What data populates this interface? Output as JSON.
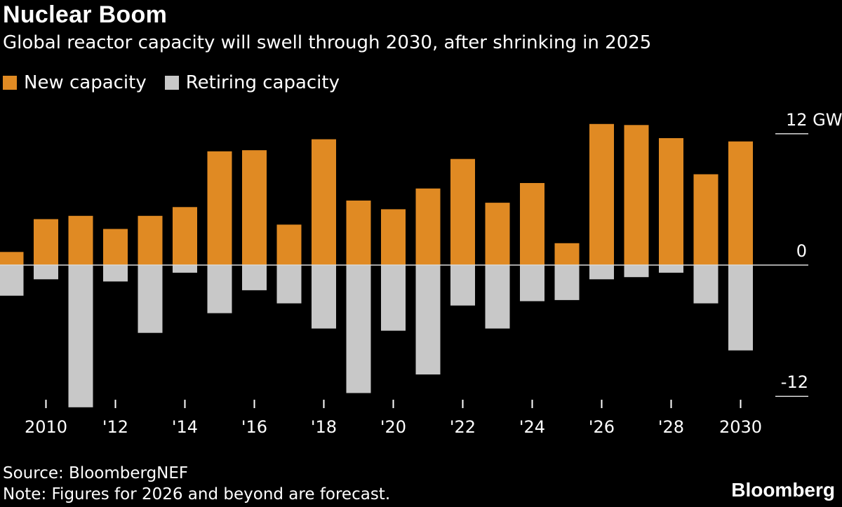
{
  "title": "Nuclear Boom",
  "subtitle": "Global reactor capacity will swell through 2030, after shrinking in 2025",
  "legend": {
    "new": "New capacity",
    "retiring": "Retiring capacity"
  },
  "colors": {
    "new": "#e08a23",
    "retiring": "#c8c8c8",
    "background": "#000000"
  },
  "footer": {
    "source": "Source: BloombergNEF",
    "note": "Note: Figures for 2026 and beyond are forecast."
  },
  "brand": "Bloomberg",
  "chart_data": {
    "type": "bar",
    "x": [
      2009,
      2010,
      2011,
      2012,
      2013,
      2014,
      2015,
      2016,
      2017,
      2018,
      2019,
      2020,
      2021,
      2022,
      2023,
      2024,
      2025,
      2026,
      2027,
      2028,
      2029,
      2030
    ],
    "series": [
      {
        "name": "New capacity",
        "values": [
          1.2,
          4.2,
          4.5,
          3.3,
          4.5,
          5.3,
          10.4,
          10.5,
          3.7,
          11.5,
          5.9,
          5.1,
          7.0,
          9.7,
          5.7,
          7.5,
          2.0,
          12.9,
          12.8,
          11.6,
          8.3,
          11.3
        ]
      },
      {
        "name": "Retiring capacity",
        "values": [
          -2.8,
          -1.3,
          -13.0,
          -1.5,
          -6.2,
          -0.7,
          -4.4,
          -2.3,
          -3.5,
          -5.8,
          -11.7,
          -6.0,
          -10.0,
          -3.7,
          -5.8,
          -3.3,
          -3.2,
          -1.3,
          -1.1,
          -0.7,
          -3.5,
          -7.8
        ]
      }
    ],
    "x_tick_labels": [
      {
        "x": 2010,
        "label": "2010"
      },
      {
        "x": 2012,
        "label": "'12"
      },
      {
        "x": 2014,
        "label": "'14"
      },
      {
        "x": 2016,
        "label": "'16"
      },
      {
        "x": 2018,
        "label": "'18"
      },
      {
        "x": 2020,
        "label": "'20"
      },
      {
        "x": 2022,
        "label": "'22"
      },
      {
        "x": 2024,
        "label": "'24"
      },
      {
        "x": 2026,
        "label": "'26"
      },
      {
        "x": 2028,
        "label": "'28"
      },
      {
        "x": 2030,
        "label": "2030"
      }
    ],
    "y_tick_labels": [
      {
        "y": 12,
        "label": "12 GW"
      },
      {
        "y": 0,
        "label": "0"
      },
      {
        "y": -12,
        "label": "-12"
      }
    ],
    "ylim": [
      -12,
      12
    ],
    "xlabel": "",
    "ylabel": "",
    "grid": false,
    "legend_position": "top-left"
  }
}
